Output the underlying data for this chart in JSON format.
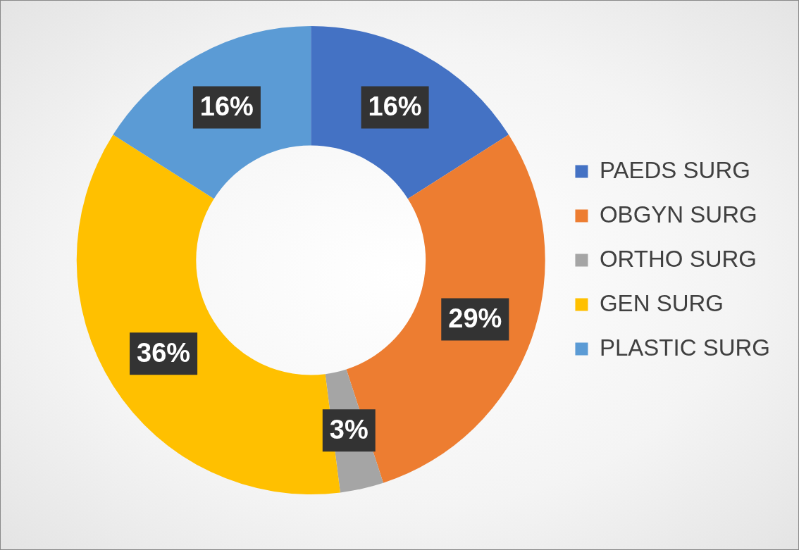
{
  "chart_data": {
    "type": "donut",
    "categories": [
      "PAEDS SURG",
      "OBGYN SURG",
      "ORTHO SURG",
      "GEN SURG",
      "PLASTIC SURG"
    ],
    "values": [
      16,
      29,
      3,
      36,
      16
    ],
    "colors": [
      "#4472c4",
      "#ed7d31",
      "#a5a5a5",
      "#ffc000",
      "#5b9bd5"
    ],
    "value_labels": [
      "16%",
      "29%",
      "3%",
      "36%",
      "16%"
    ],
    "legend": "right"
  }
}
